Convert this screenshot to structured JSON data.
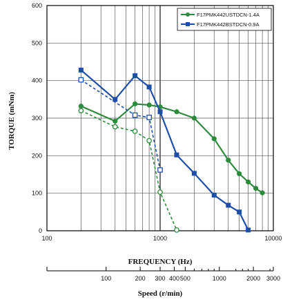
{
  "chart_data": {
    "type": "line",
    "xlabel": "FREQUENCY (Hz)",
    "ylabel": "TORQUE (mNm)",
    "secondary_xlabel": "Speed (r/min)",
    "x_scale": "log",
    "xlim": [
      100,
      10000
    ],
    "ylim": [
      0,
      600
    ],
    "x_ticks": [
      "100",
      "1000",
      "10000"
    ],
    "y_ticks": [
      "0",
      "100",
      "200",
      "300",
      "400",
      "500",
      "600"
    ],
    "speed_ticks": [
      {
        "label": "100",
        "hz": 333.3
      },
      {
        "label": "200",
        "hz": 666.7
      },
      {
        "label": "300",
        "hz": 1000
      },
      {
        "label": "400",
        "hz": 1333.3
      },
      {
        "label": "500",
        "hz": 1666.7
      },
      {
        "label": "1000",
        "hz": 3333.3
      },
      {
        "label": "2000",
        "hz": 6666.7
      },
      {
        "label": "3000",
        "hz": 10000
      }
    ],
    "speed_minor_ticks_hz": [
      1333.3,
      2000,
      2333.3,
      2666.7,
      3000,
      4666.7,
      5333.3,
      6000,
      9333.3,
      10000
    ],
    "grid": true,
    "legend_position": "top-right",
    "series": [
      {
        "name": "F17PMK442USTDCN-1.4A",
        "color": "#2e8b3d",
        "marker": "circle",
        "line": "solid",
        "x": [
          200,
          400,
          600,
          800,
          1000,
          1400,
          2000,
          3000,
          4000,
          5000,
          6000,
          7000,
          8000
        ],
        "y": [
          332,
          292,
          338,
          335,
          330,
          317,
          300,
          245,
          188,
          152,
          130,
          113,
          101
        ]
      },
      {
        "name": "F17PMK442BSTDCN-0.9A",
        "color": "#1e4fa8",
        "marker": "square",
        "line": "solid",
        "x": [
          200,
          400,
          600,
          800,
          1000,
          1400,
          2000,
          3000,
          4000,
          5000,
          6000
        ],
        "y": [
          428,
          350,
          413,
          383,
          317,
          202,
          153,
          95,
          68,
          50,
          2
        ]
      },
      {
        "color": "#2e8b3d",
        "marker": "open-circle",
        "line": "dashed",
        "x": [
          200,
          400,
          600,
          800,
          1000,
          1400
        ],
        "y": [
          320,
          277,
          265,
          240,
          103,
          2
        ]
      },
      {
        "color": "#1e4fa8",
        "marker": "open-square",
        "line": "dashed",
        "x": [
          200,
          600,
          800,
          1000
        ],
        "y": [
          402,
          308,
          302,
          162
        ]
      }
    ]
  }
}
